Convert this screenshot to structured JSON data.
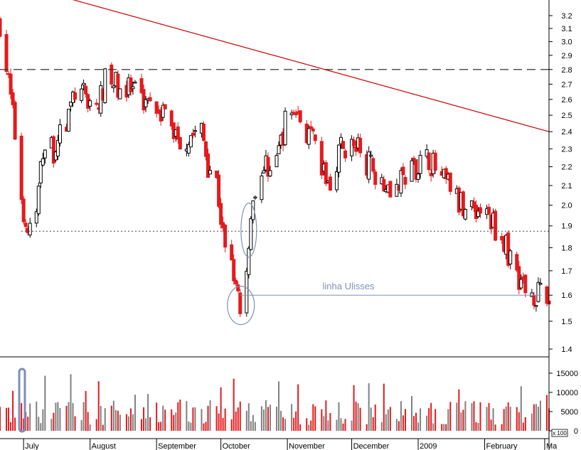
{
  "colors": {
    "background": "#ffffff",
    "down_candle": "#e41a1c",
    "up_candle": "#000000",
    "volume_up": "#808080",
    "volume_down": "#e41a1c",
    "trendline": "#cc0000",
    "resistance": "#333333",
    "support": "#444444",
    "annotation": "#7f8fb8",
    "axis": "#000000"
  },
  "chart_data": {
    "type": "candlestick",
    "title": "",
    "price_axis": {
      "range": [
        1.4,
        3.25
      ],
      "ticks": [
        3.2,
        3.1,
        3.0,
        2.9,
        2.8,
        2.7,
        2.6,
        2.5,
        2.4,
        2.3,
        2.2,
        2.1,
        2.0,
        1.9,
        1.8,
        1.7,
        1.6,
        1.5,
        1.4
      ],
      "tick_labels": [
        "3.2",
        "3.1",
        "3.0",
        "2.9",
        "2.8",
        "2.7",
        "2.6",
        "2.5",
        "2.4",
        "2.3",
        "2.2",
        "2.1",
        "2.0",
        "1.9",
        "1.8",
        "1.7",
        "1.6",
        "1.5",
        "1.4"
      ],
      "scale": "log"
    },
    "volume_axis": {
      "range": [
        0,
        18500
      ],
      "ticks": [
        15000,
        10000,
        5000,
        0
      ],
      "tick_labels": [
        "15000",
        "10000",
        "5000",
        "0"
      ],
      "unit_label": "x 100"
    },
    "months": [
      {
        "label": "July",
        "start": "2008-07-01"
      },
      {
        "label": "August",
        "start": "2008-08-01"
      },
      {
        "label": "September",
        "start": "2008-09-01"
      },
      {
        "label": "October",
        "start": "2008-10-01"
      },
      {
        "label": "November",
        "start": "2008-11-01"
      },
      {
        "label": "December",
        "start": "2008-12-01"
      },
      {
        "label": "2009",
        "start": "2009-01-01"
      },
      {
        "label": "February",
        "start": "2009-02-01"
      },
      {
        "label": "Ma",
        "start": "2009-03-01"
      }
    ],
    "x_range": [
      "2008-06-20",
      "2009-03-03"
    ],
    "lines": {
      "resistance": 2.8,
      "support": 1.875,
      "linha_ulisses": 1.6,
      "linha_ulisses_start": "2008-10-10",
      "trendline": [
        {
          "date": "2008-06-20",
          "price": 3.5
        },
        {
          "date": "2009-03-03",
          "price": 2.4
        }
      ]
    },
    "annotation_label": "linha Ulisses",
    "waypoints": [
      [
        "2008-06-20",
        3.15
      ],
      [
        "2008-06-25",
        2.6
      ],
      [
        "2008-07-01",
        1.95
      ],
      [
        "2008-07-03",
        1.88
      ],
      [
        "2008-07-07",
        1.95
      ],
      [
        "2008-07-10",
        2.3
      ],
      [
        "2008-07-15",
        2.3
      ],
      [
        "2008-07-21",
        2.45
      ],
      [
        "2008-07-25",
        2.65
      ],
      [
        "2008-07-31",
        2.6
      ],
      [
        "2008-08-05",
        2.55
      ],
      [
        "2008-08-08",
        2.72
      ],
      [
        "2008-08-13",
        2.7
      ],
      [
        "2008-08-20",
        2.65
      ],
      [
        "2008-08-25",
        2.6
      ],
      [
        "2008-08-29",
        2.62
      ],
      [
        "2008-09-03",
        2.55
      ],
      [
        "2008-09-08",
        2.42
      ],
      [
        "2008-09-12",
        2.35
      ],
      [
        "2008-09-17",
        2.38
      ],
      [
        "2008-09-22",
        2.4
      ],
      [
        "2008-09-25",
        2.22
      ],
      [
        "2008-09-29",
        2.12
      ],
      [
        "2008-10-02",
        1.85
      ],
      [
        "2008-10-06",
        1.75
      ],
      [
        "2008-10-08",
        1.68
      ],
      [
        "2008-10-10",
        1.55
      ],
      [
        "2008-10-13",
        1.72
      ],
      [
        "2008-10-15",
        1.95
      ],
      [
        "2008-10-17",
        2.1
      ],
      [
        "2008-10-22",
        2.2
      ],
      [
        "2008-10-27",
        2.25
      ],
      [
        "2008-10-31",
        2.45
      ],
      [
        "2008-11-04",
        2.55
      ],
      [
        "2008-11-10",
        2.4
      ],
      [
        "2008-11-14",
        2.3
      ],
      [
        "2008-11-18",
        2.15
      ],
      [
        "2008-11-21",
        2.1
      ],
      [
        "2008-11-25",
        2.3
      ],
      [
        "2008-12-01",
        2.32
      ],
      [
        "2008-12-05",
        2.28
      ],
      [
        "2008-12-10",
        2.2
      ],
      [
        "2008-12-15",
        2.15
      ],
      [
        "2008-12-22",
        2.08
      ],
      [
        "2008-12-30",
        2.2
      ],
      [
        "2009-01-06",
        2.25
      ],
      [
        "2009-01-12",
        2.12
      ],
      [
        "2009-01-16",
        2.1
      ],
      [
        "2009-01-20",
        2.0
      ],
      [
        "2009-01-26",
        2.0
      ],
      [
        "2009-02-02",
        1.95
      ],
      [
        "2009-02-06",
        1.9
      ],
      [
        "2009-02-11",
        1.8
      ],
      [
        "2009-02-16",
        1.7
      ],
      [
        "2009-02-20",
        1.62
      ],
      [
        "2009-02-25",
        1.61
      ],
      [
        "2009-03-03",
        1.56
      ]
    ]
  }
}
